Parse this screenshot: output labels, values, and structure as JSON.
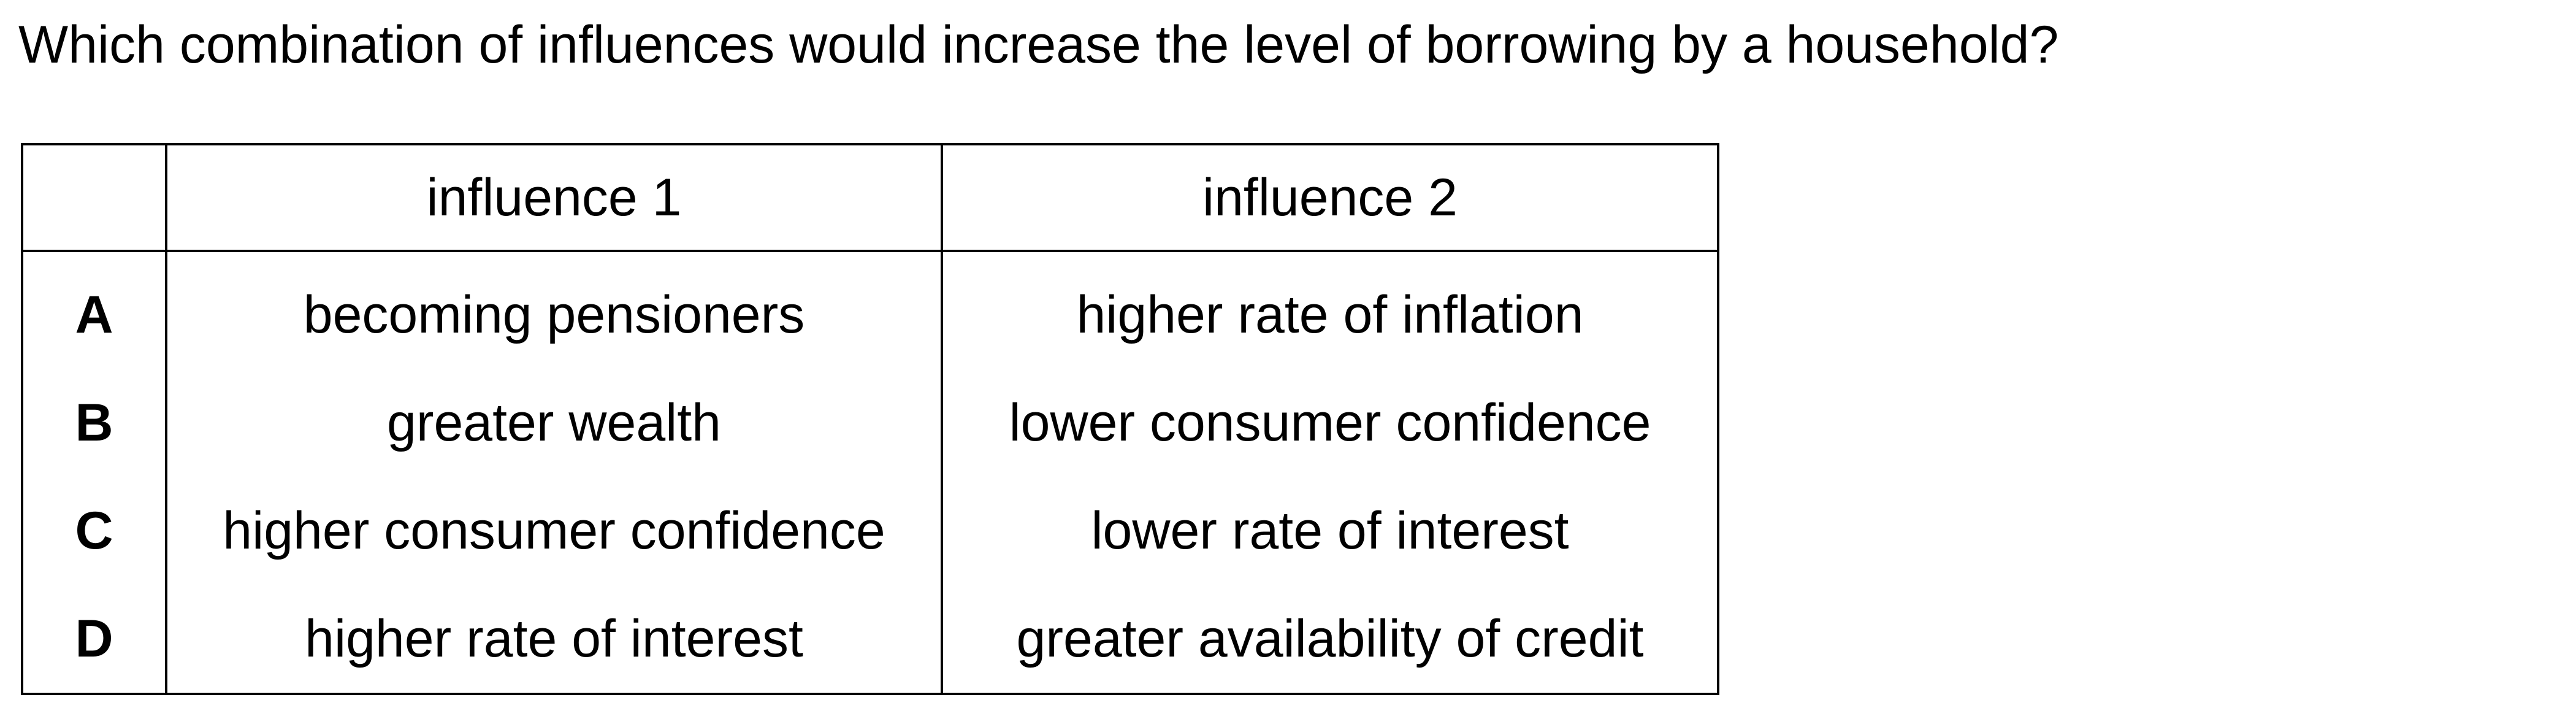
{
  "question": "Which combination of influences would increase the level of borrowing by a household?",
  "table": {
    "headers": [
      "",
      "influence 1",
      "influence 2"
    ],
    "rows": [
      {
        "letter": "A",
        "influence_1": "becoming pensioners",
        "influence_2": "higher rate of inflation"
      },
      {
        "letter": "B",
        "influence_1": "greater wealth",
        "influence_2": "lower consumer confidence"
      },
      {
        "letter": "C",
        "influence_1": "higher consumer confidence",
        "influence_2": "lower rate of interest"
      },
      {
        "letter": "D",
        "influence_1": "higher rate of interest",
        "influence_2": "greater availability of credit"
      }
    ]
  }
}
